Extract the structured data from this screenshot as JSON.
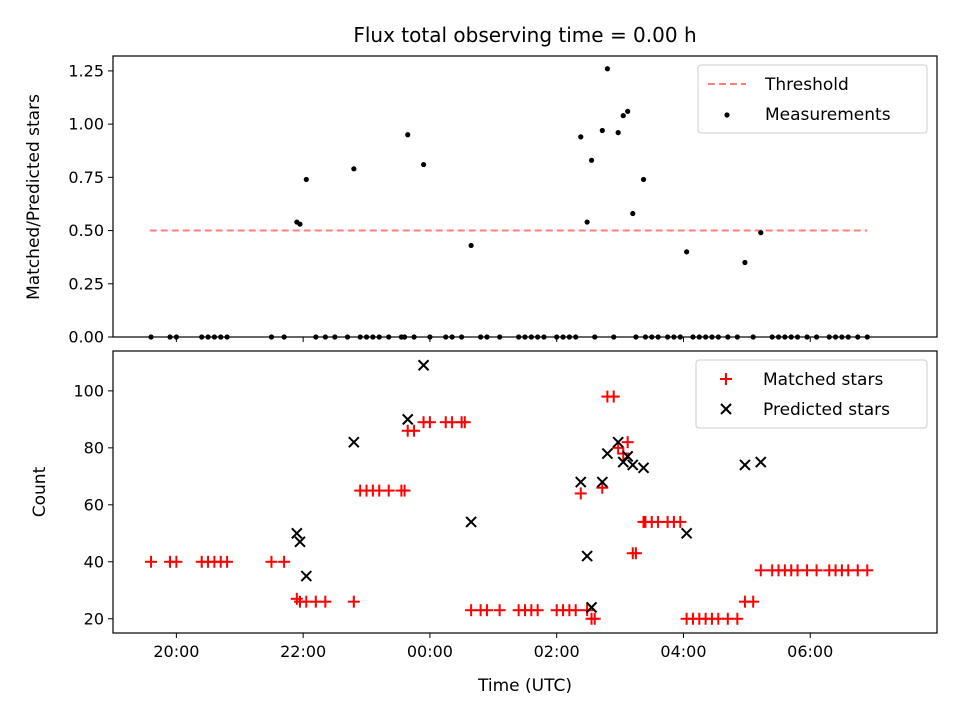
{
  "chart_data": [
    {
      "type": "scatter",
      "title": "Flux total observing time = 0.00 h",
      "xlabel": "",
      "ylabel": "Matched/Predicted stars",
      "ylim": [
        0,
        1.32
      ],
      "yticks": [
        "0.00",
        "0.25",
        "0.50",
        "0.75",
        "1.00",
        "1.25"
      ],
      "threshold": {
        "name": "Threshold",
        "value": 0.5,
        "x_start": 19.58,
        "x_end": 30.9,
        "color": "#ff7f7f",
        "style": "dashed"
      },
      "series": [
        {
          "name": "Measurements",
          "color": "#000000",
          "marker": "dot",
          "points": [
            [
              19.6,
              0
            ],
            [
              19.9,
              0
            ],
            [
              20.0,
              0
            ],
            [
              20.4,
              0
            ],
            [
              20.5,
              0
            ],
            [
              20.6,
              0
            ],
            [
              20.7,
              0
            ],
            [
              20.8,
              0
            ],
            [
              21.5,
              0
            ],
            [
              21.7,
              0
            ],
            [
              21.9,
              0.54
            ],
            [
              21.95,
              0.53
            ],
            [
              22.05,
              0.74
            ],
            [
              22.2,
              0
            ],
            [
              22.35,
              0
            ],
            [
              22.5,
              0
            ],
            [
              22.7,
              0
            ],
            [
              22.8,
              0.79
            ],
            [
              22.9,
              0
            ],
            [
              23.0,
              0
            ],
            [
              23.1,
              0
            ],
            [
              23.2,
              0
            ],
            [
              23.35,
              0
            ],
            [
              23.55,
              0
            ],
            [
              23.6,
              0
            ],
            [
              23.65,
              0.95
            ],
            [
              23.75,
              0
            ],
            [
              23.9,
              0.81
            ],
            [
              24.0,
              0
            ],
            [
              24.25,
              0
            ],
            [
              24.35,
              0
            ],
            [
              24.5,
              0
            ],
            [
              24.65,
              0.43
            ],
            [
              24.8,
              0
            ],
            [
              24.9,
              0
            ],
            [
              25.1,
              0
            ],
            [
              25.4,
              0
            ],
            [
              25.5,
              0
            ],
            [
              25.6,
              0
            ],
            [
              25.7,
              0
            ],
            [
              25.8,
              0
            ],
            [
              26.0,
              0
            ],
            [
              26.1,
              0
            ],
            [
              26.2,
              0
            ],
            [
              26.3,
              0
            ],
            [
              26.38,
              0.94
            ],
            [
              26.48,
              0.54
            ],
            [
              26.55,
              0.83
            ],
            [
              26.6,
              0
            ],
            [
              26.72,
              0.97
            ],
            [
              26.8,
              1.26
            ],
            [
              26.9,
              0
            ],
            [
              26.97,
              0.96
            ],
            [
              27.05,
              1.04
            ],
            [
              27.12,
              1.06
            ],
            [
              27.2,
              0.58
            ],
            [
              27.25,
              0
            ],
            [
              27.37,
              0.74
            ],
            [
              27.4,
              0
            ],
            [
              27.5,
              0
            ],
            [
              27.6,
              0
            ],
            [
              27.75,
              0
            ],
            [
              27.85,
              0
            ],
            [
              27.95,
              0
            ],
            [
              28.05,
              0.4
            ],
            [
              28.15,
              0
            ],
            [
              28.25,
              0
            ],
            [
              28.35,
              0
            ],
            [
              28.45,
              0
            ],
            [
              28.55,
              0
            ],
            [
              28.7,
              0
            ],
            [
              28.85,
              0
            ],
            [
              28.97,
              0.35
            ],
            [
              29.1,
              0
            ],
            [
              29.22,
              0.49
            ],
            [
              29.4,
              0
            ],
            [
              29.5,
              0
            ],
            [
              29.6,
              0
            ],
            [
              29.7,
              0
            ],
            [
              29.8,
              0
            ],
            [
              29.95,
              0
            ],
            [
              30.1,
              0
            ],
            [
              30.3,
              0
            ],
            [
              30.4,
              0
            ],
            [
              30.5,
              0
            ],
            [
              30.6,
              0
            ],
            [
              30.75,
              0
            ],
            [
              30.9,
              0
            ]
          ]
        }
      ],
      "legend": "top-right"
    },
    {
      "type": "scatter",
      "title": "",
      "xlabel": "Time (UTC)",
      "ylabel": "Count",
      "xlim": [
        19.0,
        32.0
      ],
      "ylim": [
        15,
        114
      ],
      "xticks": [
        "20:00",
        "22:00",
        "00:00",
        "02:00",
        "04:00",
        "06:00"
      ],
      "yticks": [
        "20",
        "40",
        "60",
        "80",
        "100"
      ],
      "series": [
        {
          "name": "Matched stars",
          "color": "#ff0000",
          "marker": "plus",
          "points": [
            [
              19.6,
              40
            ],
            [
              19.9,
              40
            ],
            [
              20.0,
              40
            ],
            [
              20.4,
              40
            ],
            [
              20.5,
              40
            ],
            [
              20.6,
              40
            ],
            [
              20.7,
              40
            ],
            [
              20.8,
              40
            ],
            [
              21.5,
              40
            ],
            [
              21.7,
              40
            ],
            [
              21.9,
              27
            ],
            [
              21.95,
              26
            ],
            [
              22.05,
              26
            ],
            [
              22.2,
              26
            ],
            [
              22.35,
              26
            ],
            [
              22.8,
              26
            ],
            [
              22.9,
              65
            ],
            [
              23.0,
              65
            ],
            [
              23.1,
              65
            ],
            [
              23.2,
              65
            ],
            [
              23.35,
              65
            ],
            [
              23.55,
              65
            ],
            [
              23.6,
              65
            ],
            [
              23.65,
              86
            ],
            [
              23.75,
              86
            ],
            [
              23.9,
              89
            ],
            [
              24.0,
              89
            ],
            [
              24.25,
              89
            ],
            [
              24.35,
              89
            ],
            [
              24.5,
              89
            ],
            [
              24.55,
              89
            ],
            [
              24.65,
              23
            ],
            [
              24.8,
              23
            ],
            [
              24.9,
              23
            ],
            [
              25.1,
              23
            ],
            [
              25.4,
              23
            ],
            [
              25.5,
              23
            ],
            [
              25.6,
              23
            ],
            [
              25.7,
              23
            ],
            [
              26.0,
              23
            ],
            [
              26.1,
              23
            ],
            [
              26.2,
              23
            ],
            [
              26.3,
              23
            ],
            [
              26.38,
              64
            ],
            [
              26.48,
              23
            ],
            [
              26.55,
              20
            ],
            [
              26.6,
              20
            ],
            [
              26.72,
              66
            ],
            [
              26.8,
              98
            ],
            [
              26.9,
              98
            ],
            [
              26.97,
              80
            ],
            [
              27.05,
              78
            ],
            [
              27.12,
              82
            ],
            [
              27.2,
              43
            ],
            [
              27.25,
              43
            ],
            [
              27.37,
              54
            ],
            [
              27.4,
              54
            ],
            [
              27.5,
              54
            ],
            [
              27.6,
              54
            ],
            [
              27.75,
              54
            ],
            [
              27.85,
              54
            ],
            [
              27.95,
              54
            ],
            [
              28.05,
              20
            ],
            [
              28.15,
              20
            ],
            [
              28.25,
              20
            ],
            [
              28.35,
              20
            ],
            [
              28.45,
              20
            ],
            [
              28.55,
              20
            ],
            [
              28.7,
              20
            ],
            [
              28.85,
              20
            ],
            [
              28.97,
              26
            ],
            [
              29.1,
              26
            ],
            [
              29.22,
              37
            ],
            [
              29.4,
              37
            ],
            [
              29.5,
              37
            ],
            [
              29.6,
              37
            ],
            [
              29.7,
              37
            ],
            [
              29.8,
              37
            ],
            [
              29.95,
              37
            ],
            [
              30.1,
              37
            ],
            [
              30.3,
              37
            ],
            [
              30.4,
              37
            ],
            [
              30.5,
              37
            ],
            [
              30.6,
              37
            ],
            [
              30.75,
              37
            ],
            [
              30.9,
              37
            ]
          ]
        },
        {
          "name": "Predicted stars",
          "color": "#000000",
          "marker": "x",
          "points": [
            [
              21.9,
              50
            ],
            [
              21.95,
              47
            ],
            [
              22.05,
              35
            ],
            [
              22.8,
              82
            ],
            [
              23.65,
              90
            ],
            [
              23.9,
              109
            ],
            [
              24.65,
              54
            ],
            [
              26.38,
              68
            ],
            [
              26.48,
              42
            ],
            [
              26.55,
              24
            ],
            [
              26.72,
              68
            ],
            [
              26.8,
              78
            ],
            [
              26.97,
              82
            ],
            [
              27.05,
              75
            ],
            [
              27.12,
              77
            ],
            [
              27.2,
              74
            ],
            [
              27.37,
              73
            ],
            [
              28.05,
              50
            ],
            [
              28.97,
              74
            ],
            [
              29.22,
              75
            ]
          ]
        }
      ],
      "legend": "top-right"
    }
  ]
}
